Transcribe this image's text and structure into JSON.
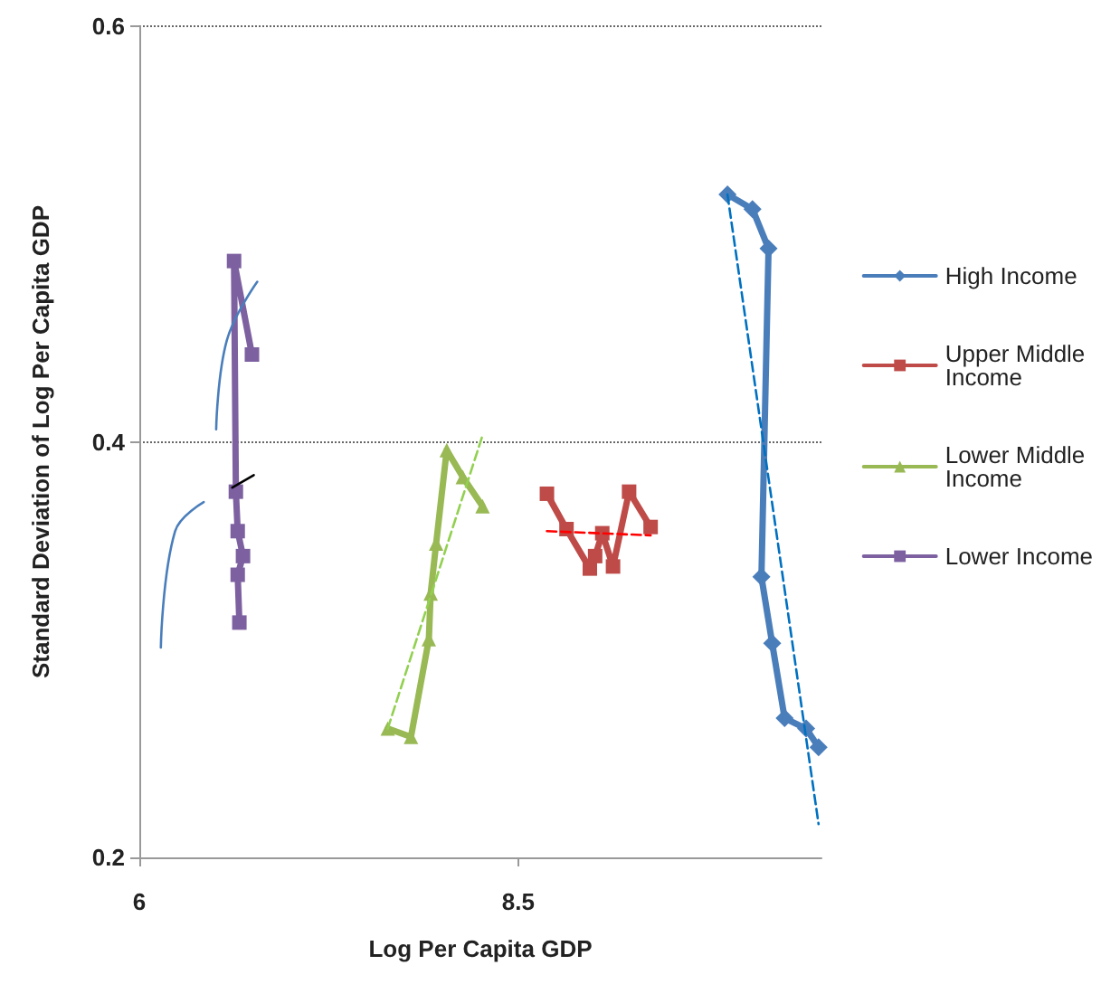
{
  "chart_data": {
    "type": "line",
    "xlabel": "Log Per Capita GDP",
    "ylabel": "Standard Deviation of Log Per Capita GDP",
    "xlim": [
      6,
      10.5
    ],
    "xticks": [
      6,
      8.5
    ],
    "ylim": [
      0.2,
      0.6
    ],
    "yticks": [
      0.2,
      0.4,
      0.6
    ],
    "grid": "y",
    "legend": "right",
    "line_style": "solid",
    "series": [
      {
        "name": "High Income",
        "color": "#4a7ebb",
        "marker": "diamond",
        "x": [
          9.88,
          10.045,
          10.151,
          10.104,
          10.175,
          10.257,
          10.399,
          10.481
        ],
        "values": [
          0.519,
          0.512,
          0.493,
          0.335,
          0.303,
          0.267,
          0.262,
          0.253
        ]
      },
      {
        "name": "Upper Middle Income",
        "color": "#be4b48",
        "marker": "square",
        "x": [
          8.689,
          8.818,
          8.972,
          9.007,
          9.054,
          9.125,
          9.231,
          9.373
        ],
        "values": [
          0.375,
          0.358,
          0.339,
          0.345,
          0.356,
          0.34,
          0.376,
          0.359
        ]
      },
      {
        "name": "Lower Middle Income",
        "color": "#98b954",
        "marker": "triangle",
        "x": [
          7.639,
          7.792,
          7.91,
          7.922,
          7.958,
          8.028,
          8.134,
          8.264
        ],
        "values": [
          0.262,
          0.258,
          0.305,
          0.327,
          0.351,
          0.396,
          0.383,
          0.369
        ]
      },
      {
        "name": "Lower Income",
        "color": "#7d60a0",
        "marker": "square",
        "x": [
          6.743,
          6.625,
          6.637,
          6.649,
          6.684,
          6.649,
          6.66
        ],
        "values": [
          0.442,
          0.487,
          0.376,
          0.357,
          0.345,
          0.336,
          0.313
        ]
      },
      {
        "color": "#0070c0",
        "marker": "none",
        "line_style": "dashed",
        "x": [
          9.88,
          10.481
        ],
        "values": [
          0.519,
          0.216
        ]
      },
      {
        "color": "#ff0000",
        "marker": "none",
        "line_style": "dashed",
        "x": [
          8.689,
          9.373
        ],
        "values": [
          0.357,
          0.355
        ]
      },
      {
        "color": "#92d050",
        "marker": "none",
        "line_style": "dashed",
        "x": [
          7.639,
          8.264
        ],
        "values": [
          0.262,
          0.403
        ]
      },
      {
        "color": "#000000",
        "marker": "none",
        "x": [
          6.613,
          6.755
        ],
        "values": [
          0.378,
          0.384
        ]
      },
      {
        "color": "#4a7ebb",
        "marker": "none",
        "x": [
          6.142,
          6.236,
          6.425
        ],
        "values": [
          0.301,
          0.357,
          0.371
        ]
      },
      {
        "color": "#4a7ebb",
        "marker": "none",
        "x": [
          6.507,
          6.578,
          6.778
        ],
        "values": [
          0.406,
          0.449,
          0.477
        ]
      }
    ]
  }
}
